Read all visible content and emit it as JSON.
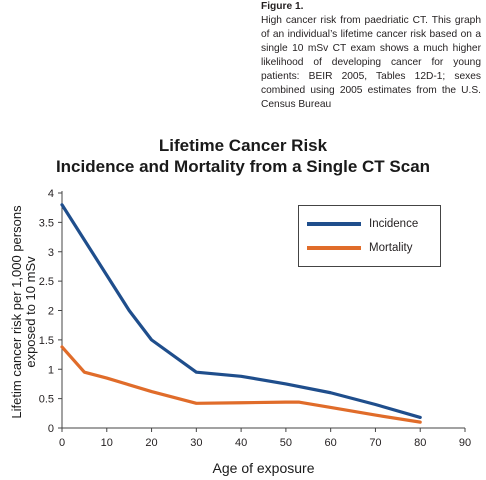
{
  "caption": {
    "top_clip": "…",
    "figure_label": "Figure 1.",
    "text": "High cancer risk from paedriatic CT. This graph of an individual’s lifetime cancer risk based on a single 10 mSv CT exam shows a much higher likelihood of developing cancer for young patients: BEIR 2005, Tables 12D-1; sexes combined using 2005 estimates from the U.S. Census Bureau"
  },
  "chart_data": {
    "type": "line",
    "title": "Lifetime Cancer Risk",
    "subtitle": "Incidence and Mortality from a Single CT Scan",
    "xlabel": "Age of exposure",
    "ylabel": "Lifetim cancer risk per 1,000 persons exposed to 10 mSv",
    "xlim": [
      0,
      90
    ],
    "ylim": [
      0,
      4
    ],
    "xticks": [
      0,
      10,
      20,
      30,
      40,
      50,
      60,
      70,
      80,
      90
    ],
    "yticks": [
      0,
      0.5,
      1,
      1.5,
      2,
      2.5,
      3,
      3.5,
      4
    ],
    "ytick_labels": [
      "0",
      "0.5",
      "1",
      "1.5",
      "2",
      "2.5",
      "3",
      "3.5",
      "4"
    ],
    "grid": false,
    "legend": "top-right",
    "series": [
      {
        "name": "Incidence",
        "color": "#1f4e8c",
        "x": [
          0,
          5,
          10,
          15,
          20,
          30,
          40,
          50,
          60,
          70,
          80
        ],
        "y": [
          3.8,
          3.2,
          2.6,
          2.0,
          1.5,
          0.95,
          0.88,
          0.75,
          0.6,
          0.4,
          0.18
        ]
      },
      {
        "name": "Mortality",
        "color": "#e06c2a",
        "x": [
          0,
          5,
          10,
          20,
          30,
          40,
          50,
          53,
          60,
          70,
          80
        ],
        "y": [
          1.38,
          0.95,
          0.85,
          0.62,
          0.42,
          0.43,
          0.44,
          0.44,
          0.35,
          0.22,
          0.1
        ]
      }
    ]
  }
}
